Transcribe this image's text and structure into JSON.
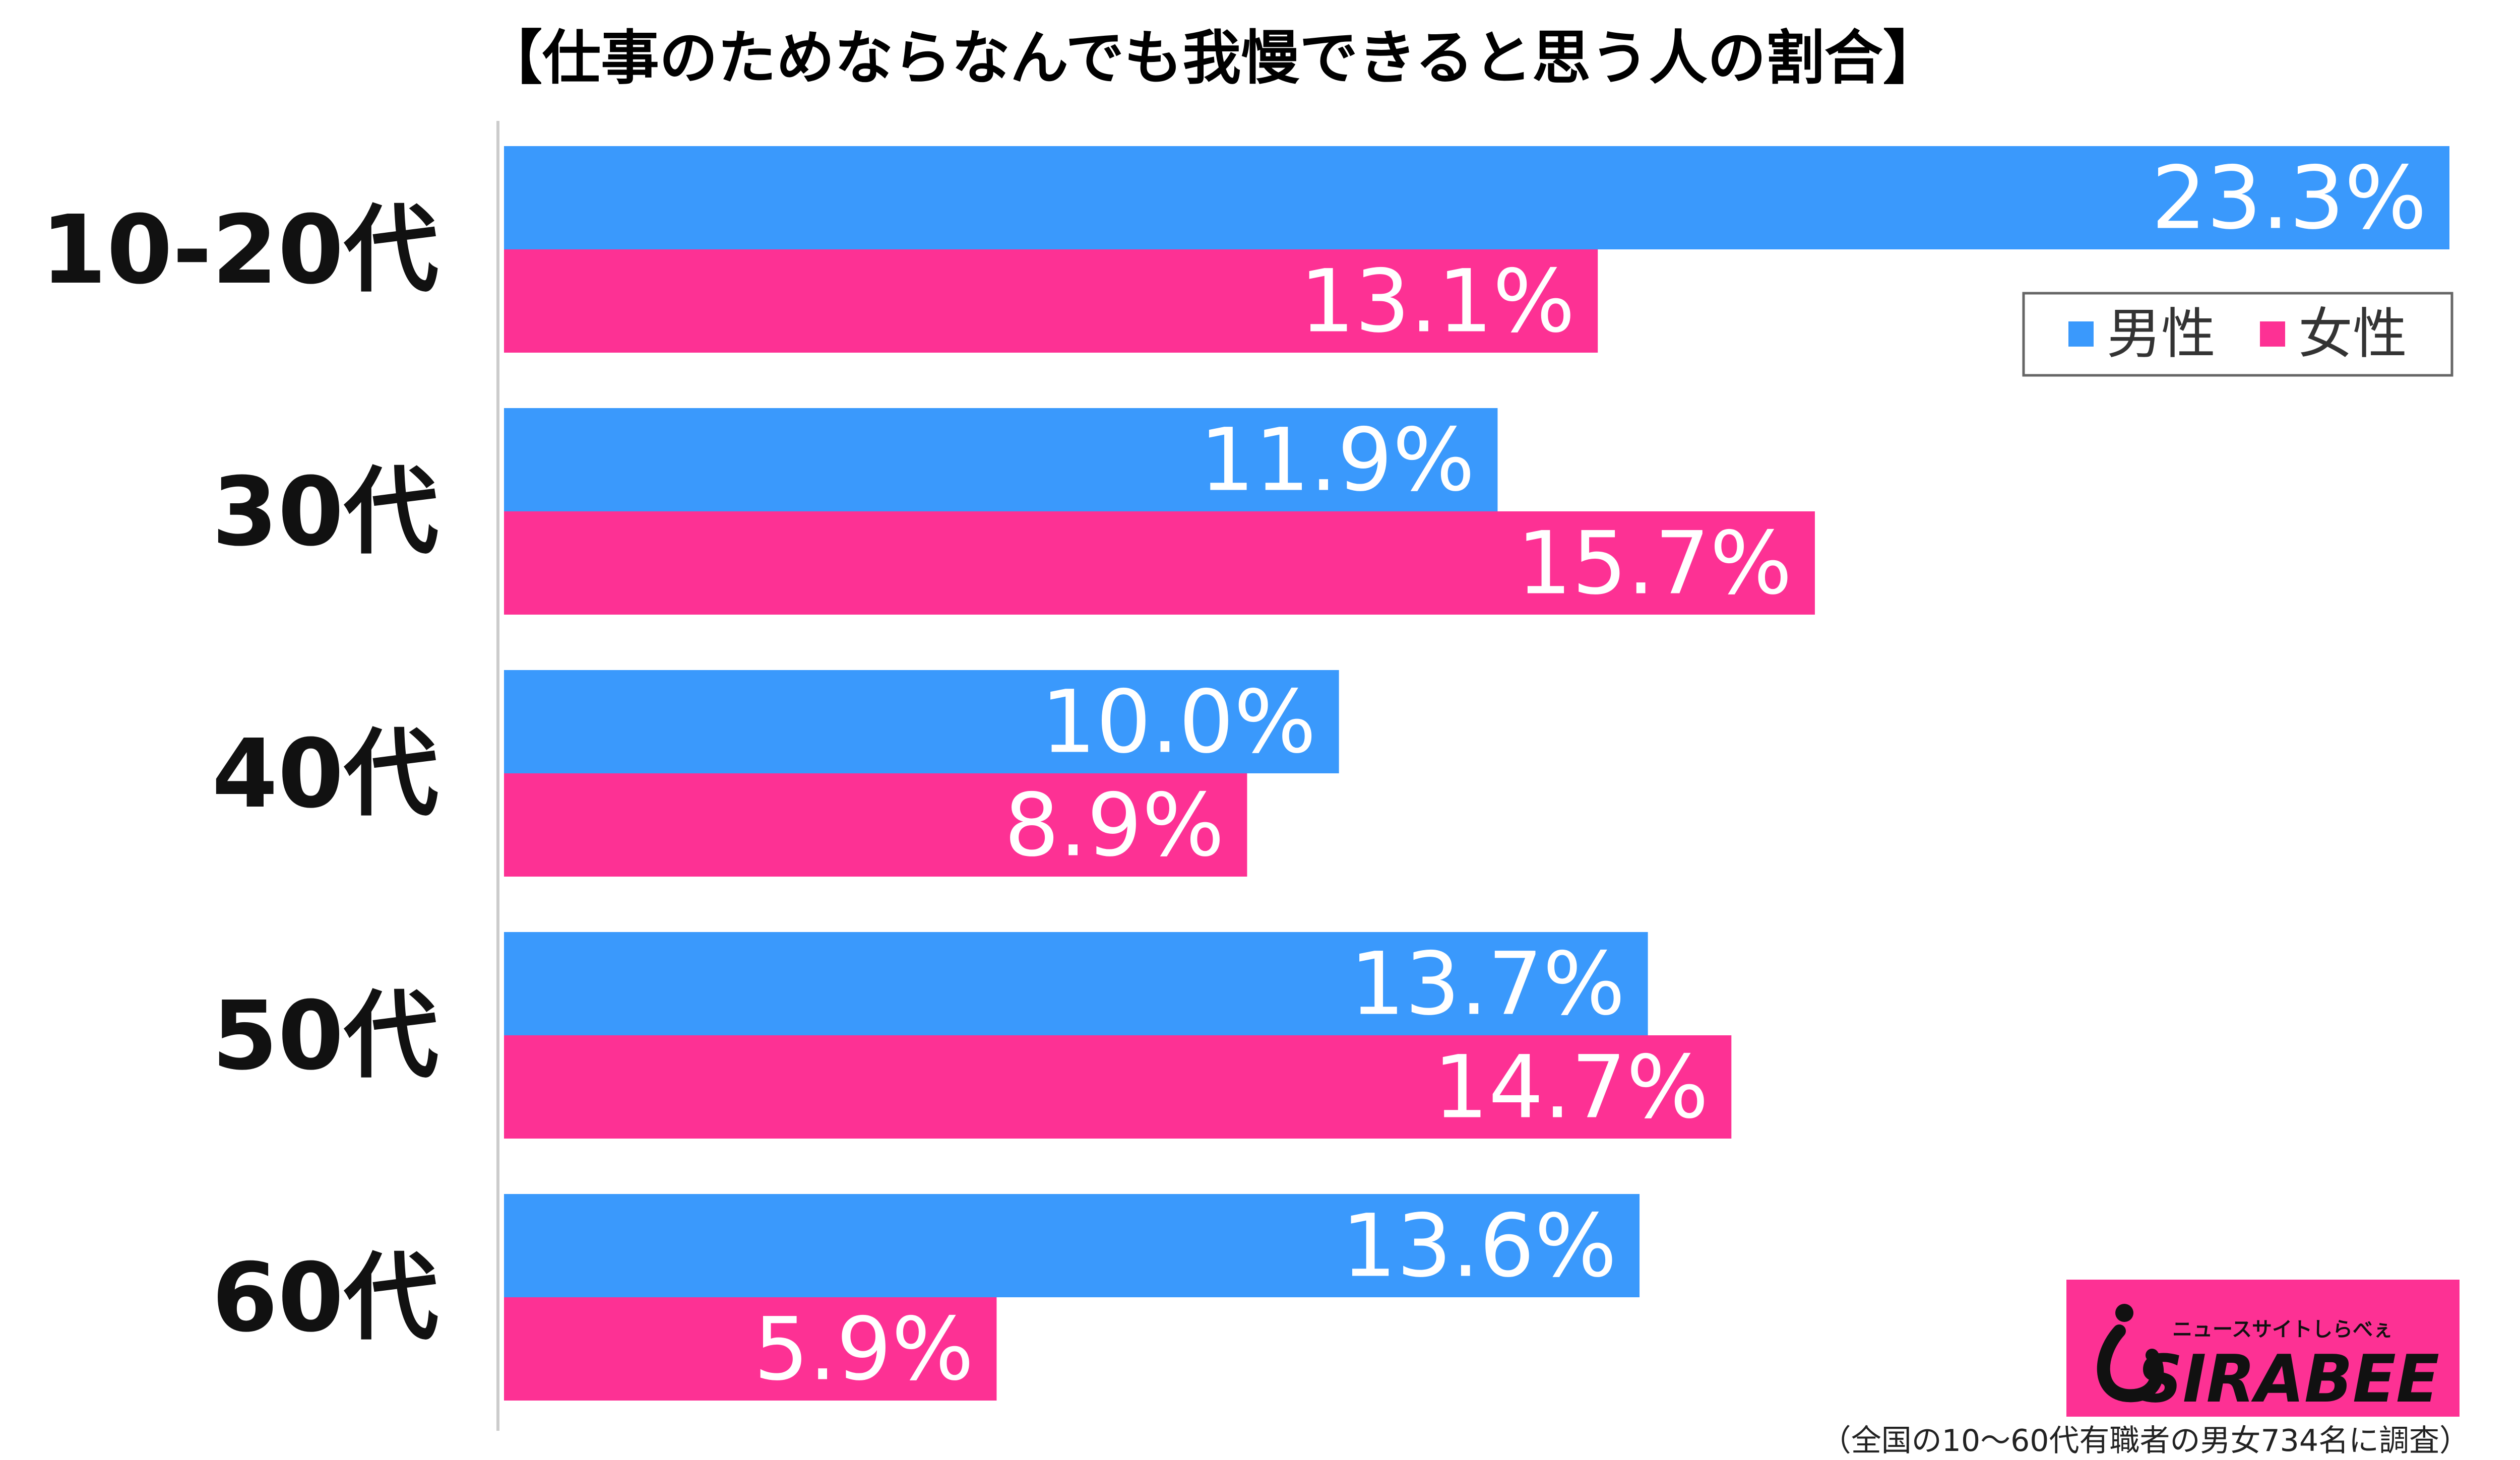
{
  "chart_data": {
    "type": "bar",
    "orientation": "horizontal",
    "title": "【仕事のためならなんでも我慢できると思う人の割合】",
    "categories": [
      "10-20代",
      "30代",
      "40代",
      "50代",
      "60代"
    ],
    "series": [
      {
        "name": "男性",
        "color": "#3a99fc",
        "values": [
          23.3,
          11.9,
          10.0,
          13.7,
          13.6
        ],
        "labels": [
          "23.3%",
          "11.9%",
          "10.0%",
          "13.7%",
          "13.6%"
        ]
      },
      {
        "name": "女性",
        "color": "#fd3194",
        "values": [
          13.1,
          15.7,
          8.9,
          14.7,
          5.9
        ],
        "labels": [
          "13.1%",
          "15.7%",
          "8.9%",
          "14.7%",
          "5.9%"
        ]
      }
    ],
    "xlim": [
      0,
      23.3
    ],
    "legend": "top-right",
    "grid": false,
    "footnote": "（全国の10〜60代有職者の男女734名に調査）"
  },
  "logo": {
    "tagline": "ニュースサイトしらべぇ",
    "name": "SIRABEE",
    "background": "#fd3194"
  }
}
